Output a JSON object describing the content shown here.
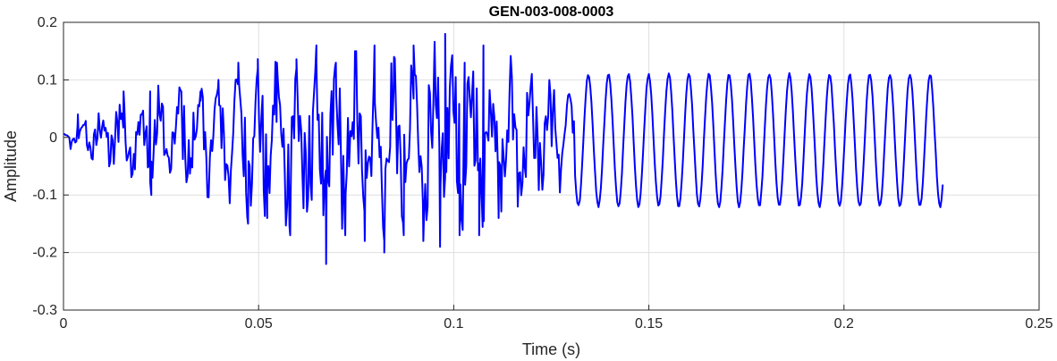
{
  "chart_data": {
    "type": "line",
    "title": "GEN-003-008-0003",
    "xlabel": "Time (s)",
    "ylabel": "Amplitude",
    "xlim": [
      0,
      0.25
    ],
    "ylim": [
      -0.3,
      0.2
    ],
    "x_ticks": [
      0,
      0.05,
      0.1,
      0.15,
      0.2,
      0.25
    ],
    "x_tick_labels": [
      "0",
      "0.05",
      "0.1",
      "0.15",
      "0.2",
      "0.25"
    ],
    "y_ticks": [
      -0.3,
      -0.2,
      -0.1,
      0,
      0.1,
      0.2
    ],
    "y_tick_labels": [
      "-0.3",
      "-0.2",
      "-0.1",
      "0",
      "0.1",
      "0.2"
    ],
    "grid": true,
    "legend": "none",
    "series": [
      {
        "color": "#0000ff",
        "sample_interval": 0.0003,
        "x_start": 0,
        "x_end": 0.2255,
        "envelope": {
          "x": [
            0,
            0.005,
            0.01,
            0.015,
            0.02,
            0.025,
            0.03,
            0.035,
            0.04,
            0.045,
            0.05,
            0.055,
            0.06,
            0.065,
            0.07,
            0.075,
            0.08,
            0.085,
            0.09,
            0.095,
            0.1,
            0.105,
            0.11,
            0.115,
            0.12,
            0.125,
            0.13,
            0.135,
            0.14,
            0.15,
            0.16,
            0.17,
            0.18,
            0.19,
            0.2,
            0.21,
            0.22,
            0.2255
          ],
          "max": [
            0.01,
            0.04,
            0.05,
            0.08,
            0.09,
            0.09,
            0.1,
            0.1,
            0.12,
            0.14,
            0.14,
            0.15,
            0.15,
            0.16,
            0.14,
            0.15,
            0.15,
            0.16,
            0.16,
            0.17,
            0.17,
            0.15,
            0.16,
            0.14,
            0.12,
            0.11,
            0.1,
            0.1,
            0.11,
            0.11,
            0.11,
            0.11,
            0.11,
            0.11,
            0.11,
            0.11,
            0.11,
            0.1
          ],
          "min": [
            -0.01,
            -0.04,
            -0.05,
            -0.07,
            -0.1,
            -0.1,
            -0.1,
            -0.1,
            -0.11,
            -0.13,
            -0.15,
            -0.15,
            -0.17,
            -0.2,
            -0.18,
            -0.18,
            -0.18,
            -0.18,
            -0.18,
            -0.19,
            -0.17,
            -0.17,
            -0.14,
            -0.13,
            -0.11,
            -0.1,
            -0.09,
            -0.09,
            -0.11,
            -0.12,
            -0.12,
            -0.12,
            -0.12,
            -0.12,
            -0.12,
            -0.12,
            -0.08,
            -0.07
          ]
        },
        "peaks": [
          {
            "x": 0.0037,
            "y": 0.04
          },
          {
            "x": 0.0154,
            "y": 0.08
          },
          {
            "x": 0.0222,
            "y": 0.08
          },
          {
            "x": 0.0302,
            "y": 0.08
          },
          {
            "x": 0.0351,
            "y": 0.08
          },
          {
            "x": 0.0397,
            "y": 0.1
          },
          {
            "x": 0.0448,
            "y": 0.13
          },
          {
            "x": 0.0498,
            "y": 0.12
          },
          {
            "x": 0.0547,
            "y": 0.13
          },
          {
            "x": 0.0597,
            "y": 0.12
          },
          {
            "x": 0.0648,
            "y": 0.16
          },
          {
            "x": 0.0698,
            "y": 0.13
          },
          {
            "x": 0.0747,
            "y": 0.15
          },
          {
            "x": 0.0797,
            "y": 0.16
          },
          {
            "x": 0.0847,
            "y": 0.14
          },
          {
            "x": 0.0897,
            "y": 0.16
          },
          {
            "x": 0.0978,
            "y": 0.18
          },
          {
            "x": 0.1028,
            "y": 0.13
          },
          {
            "x": 0.1076,
            "y": 0.16
          }
        ],
        "troughs": [
          {
            "x": 0.0225,
            "y": -0.1
          },
          {
            "x": 0.0372,
            "y": -0.1
          },
          {
            "x": 0.0473,
            "y": -0.15
          },
          {
            "x": 0.0522,
            "y": -0.14
          },
          {
            "x": 0.0581,
            "y": -0.17
          },
          {
            "x": 0.0673,
            "y": -0.22
          },
          {
            "x": 0.0722,
            "y": -0.17
          },
          {
            "x": 0.0772,
            "y": -0.18
          },
          {
            "x": 0.0822,
            "y": -0.2
          },
          {
            "x": 0.0872,
            "y": -0.17
          },
          {
            "x": 0.0922,
            "y": -0.18
          },
          {
            "x": 0.0965,
            "y": -0.19
          },
          {
            "x": 0.1015,
            "y": -0.17
          },
          {
            "x": 0.1065,
            "y": -0.17
          },
          {
            "x": 0.1115,
            "y": -0.14
          }
        ],
        "tonal": {
          "x_start": 0.131,
          "x_end": 0.224,
          "period": 0.00515,
          "first_peak_x": 0.1345,
          "amplitude": 0.115,
          "offset": -0.005
        }
      }
    ]
  }
}
